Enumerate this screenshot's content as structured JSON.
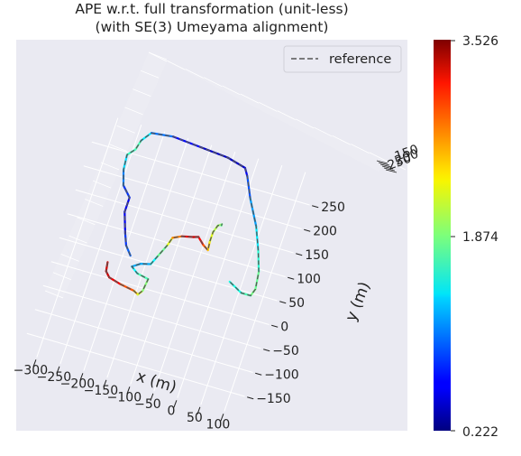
{
  "chart_data": {
    "type": "line",
    "title": [
      "APE w.r.t. full transformation (unit-less)",
      "(with SE(3) Umeyama alignment)"
    ],
    "xlabel": "x (m)",
    "ylabel": "y (m)",
    "x_ticks": [
      "−300",
      "−250",
      "−200",
      "−150",
      "−100",
      "−50",
      "0",
      "50",
      "100"
    ],
    "y_ticks": [
      "−150",
      "−100",
      "−50",
      "0",
      "50",
      "100",
      "150",
      "200",
      "250"
    ],
    "z_ticks": [
      "150",
      "200",
      "250"
    ],
    "legend": [
      "reference"
    ],
    "legend_position": "top-right",
    "colorbar": {
      "min": "0.222",
      "mid": "1.874",
      "max": "3.526",
      "colormap": "jet"
    },
    "trajectory": [
      {
        "x": -225,
        "y": 30,
        "ape": 3.3
      },
      {
        "x": -222,
        "y": 12,
        "ape": 3.2
      },
      {
        "x": -212,
        "y": 2,
        "ape": 3.3
      },
      {
        "x": -185,
        "y": -5,
        "ape": 3.0
      },
      {
        "x": -155,
        "y": -10,
        "ape": 2.7
      },
      {
        "x": -145,
        "y": -15,
        "ape": 2.3
      },
      {
        "x": -138,
        "y": -5,
        "ape": 2.0
      },
      {
        "x": -135,
        "y": 20,
        "ape": 1.8
      },
      {
        "x": -160,
        "y": 25,
        "ape": 1.6
      },
      {
        "x": -175,
        "y": 35,
        "ape": 1.3
      },
      {
        "x": -160,
        "y": 45,
        "ape": 1.1
      },
      {
        "x": -140,
        "y": 50,
        "ape": 1.3
      },
      {
        "x": -132,
        "y": 68,
        "ape": 1.6
      },
      {
        "x": -120,
        "y": 95,
        "ape": 2.0
      },
      {
        "x": -115,
        "y": 112,
        "ape": 2.4
      },
      {
        "x": -98,
        "y": 120,
        "ape": 3.0
      },
      {
        "x": -75,
        "y": 125,
        "ape": 3.4
      },
      {
        "x": -65,
        "y": 128,
        "ape": 3.2
      },
      {
        "x": -50,
        "y": 115,
        "ape": 3.0
      },
      {
        "x": -38,
        "y": 108,
        "ape": 2.6
      },
      {
        "x": -40,
        "y": 125,
        "ape": 2.3
      },
      {
        "x": -40,
        "y": 145,
        "ape": 2.1
      },
      {
        "x": -35,
        "y": 160,
        "ape": 2.0
      },
      {
        "x": -28,
        "y": 165,
        "ape": 1.9
      },
      {
        "x": -28,
        "y": 162,
        "ape": 1.7
      },
      {
        "x": -185,
        "y": 55,
        "ape": 1.0
      },
      {
        "x": -200,
        "y": 72,
        "ape": 0.9
      },
      {
        "x": -210,
        "y": 95,
        "ape": 0.7
      },
      {
        "x": -225,
        "y": 135,
        "ape": 0.5
      },
      {
        "x": -225,
        "y": 165,
        "ape": 0.7
      },
      {
        "x": -245,
        "y": 185,
        "ape": 0.9
      },
      {
        "x": -255,
        "y": 215,
        "ape": 1.2
      },
      {
        "x": -258,
        "y": 245,
        "ape": 1.5
      },
      {
        "x": -245,
        "y": 260,
        "ape": 1.8
      },
      {
        "x": -240,
        "y": 280,
        "ape": 1.6
      },
      {
        "x": -225,
        "y": 300,
        "ape": 1.2
      },
      {
        "x": -180,
        "y": 305,
        "ape": 0.8
      },
      {
        "x": -120,
        "y": 300,
        "ape": 0.5
      },
      {
        "x": -60,
        "y": 295,
        "ape": 0.4
      },
      {
        "x": -20,
        "y": 285,
        "ape": 0.5
      },
      {
        "x": -10,
        "y": 270,
        "ape": 0.8
      },
      {
        "x": 10,
        "y": 230,
        "ape": 1.0
      },
      {
        "x": 40,
        "y": 180,
        "ape": 1.3
      },
      {
        "x": 60,
        "y": 135,
        "ape": 1.5
      },
      {
        "x": 75,
        "y": 95,
        "ape": 1.7
      },
      {
        "x": 80,
        "y": 60,
        "ape": 1.9
      },
      {
        "x": 75,
        "y": 45,
        "ape": 1.8
      },
      {
        "x": 55,
        "y": 45,
        "ape": 1.6
      },
      {
        "x": 25,
        "y": 60,
        "ape": 1.5
      }
    ]
  }
}
